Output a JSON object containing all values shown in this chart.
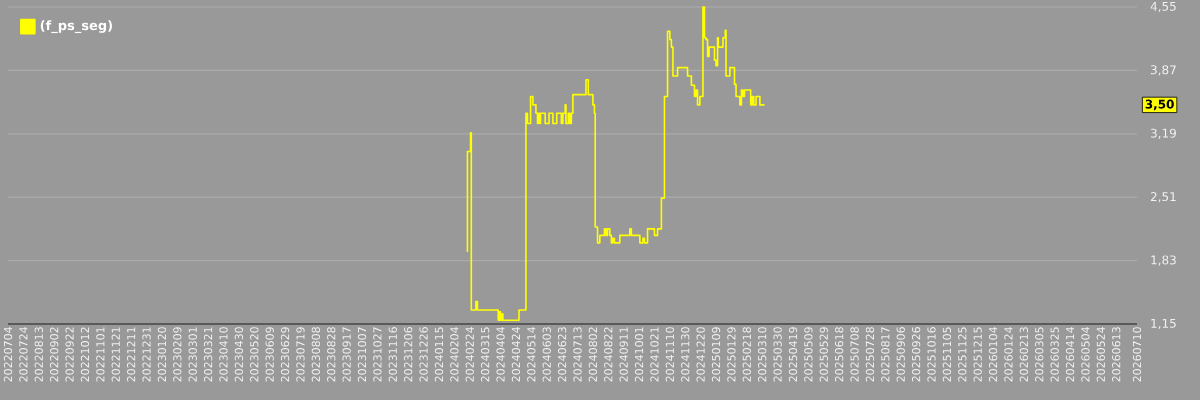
{
  "chart_data": {
    "type": "step",
    "series": [
      {
        "name": "(f_ps_seg)",
        "color": "#ffff00",
        "x": [
          "2024-02-20",
          "2024-02-21",
          "2024-02-24",
          "2024-02-25",
          "2024-02-26",
          "2024-03-02",
          "2024-03-03",
          "2024-03-05",
          "2024-03-31",
          "2024-04-01",
          "2024-04-03",
          "2024-04-04",
          "2024-04-06",
          "2024-04-07",
          "2024-04-27",
          "2024-04-28",
          "2024-05-05",
          "2024-05-07",
          "2024-05-09",
          "2024-05-13",
          "2024-05-16",
          "2024-05-18",
          "2024-05-20",
          "2024-05-22",
          "2024-05-23",
          "2024-05-25",
          "2024-05-26",
          "2024-05-31",
          "2024-06-01",
          "2024-06-04",
          "2024-06-06",
          "2024-06-10",
          "2024-06-11",
          "2024-06-15",
          "2024-06-16",
          "2024-06-20",
          "2024-06-22",
          "2024-06-24",
          "2024-06-27",
          "2024-06-28",
          "2024-07-01",
          "2024-07-03",
          "2024-07-05",
          "2024-07-07",
          "2024-07-22",
          "2024-07-24",
          "2024-07-27",
          "2024-07-31",
          "2024-08-02",
          "2024-08-04",
          "2024-08-05",
          "2024-08-08",
          "2024-08-11",
          "2024-08-17",
          "2024-08-19",
          "2024-08-21",
          "2024-08-24",
          "2024-08-26",
          "2024-08-28",
          "2024-08-30",
          "2024-09-03",
          "2024-09-06",
          "2024-09-16",
          "2024-09-19",
          "2024-09-21",
          "2024-09-30",
          "2024-10-02",
          "2024-10-06",
          "2024-10-08",
          "2024-10-12",
          "2024-10-21",
          "2024-10-25",
          "2024-10-30",
          "2024-11-03",
          "2024-11-07",
          "2024-11-10",
          "2024-11-12",
          "2024-11-14",
          "2024-11-20",
          "2024-12-01",
          "2024-12-03",
          "2024-12-08",
          "2024-12-12",
          "2024-12-14",
          "2024-12-16",
          "2024-12-19",
          "2024-12-23",
          "2024-12-25",
          "2024-12-27",
          "2024-12-29",
          "2024-12-31",
          "2025-01-07",
          "2025-01-09",
          "2025-01-11",
          "2025-01-12",
          "2025-01-18",
          "2025-01-21",
          "2025-01-22",
          "2025-01-27",
          "2025-01-31",
          "2025-02-02",
          "2025-02-04",
          "2025-02-09",
          "2025-02-11",
          "2025-02-13",
          "2025-02-15",
          "2025-02-21",
          "2025-02-23",
          "2025-02-25",
          "2025-02-27",
          "2025-03-02",
          "2025-03-07",
          "2025-03-13"
        ],
        "values": [
          1.93,
          3.0,
          3.0,
          3.2,
          1.3,
          1.3,
          1.39,
          1.3,
          1.3,
          1.19,
          1.28,
          1.19,
          1.26,
          1.19,
          1.19,
          1.3,
          1.3,
          3.41,
          3.3,
          3.59,
          3.5,
          3.5,
          3.41,
          3.3,
          3.41,
          3.3,
          3.41,
          3.41,
          3.3,
          3.3,
          3.41,
          3.41,
          3.3,
          3.3,
          3.41,
          3.41,
          3.3,
          3.41,
          3.5,
          3.3,
          3.41,
          3.3,
          3.41,
          3.61,
          3.61,
          3.77,
          3.61,
          3.61,
          3.5,
          3.41,
          2.19,
          2.02,
          2.1,
          2.17,
          2.1,
          2.17,
          2.1,
          2.02,
          2.07,
          2.02,
          2.02,
          2.1,
          2.1,
          2.17,
          2.1,
          2.1,
          2.02,
          2.07,
          2.02,
          2.17,
          2.1,
          2.17,
          2.5,
          3.59,
          4.29,
          4.2,
          4.12,
          3.81,
          3.9,
          3.9,
          3.81,
          3.71,
          3.59,
          3.66,
          3.5,
          3.59,
          4.55,
          4.22,
          4.2,
          4.02,
          4.12,
          3.98,
          3.92,
          4.22,
          4.12,
          4.22,
          4.3,
          3.81,
          3.9,
          3.9,
          3.72,
          3.59,
          3.5,
          3.66,
          3.59,
          3.66,
          3.66,
          3.5,
          3.59,
          3.5,
          3.59,
          3.5,
          3.5
        ]
      }
    ],
    "annotations": [
      "3,50"
    ],
    "xlim": [
      "2022-07-04",
      "2026-07-10"
    ],
    "xticks": [
      {
        "value": "2022-07-04",
        "label": "20220704"
      },
      {
        "value": "2022-07-24",
        "label": "20220724"
      },
      {
        "value": "2022-08-13",
        "label": "20220813"
      },
      {
        "value": "2022-09-02",
        "label": "20220902"
      },
      {
        "value": "2022-09-22",
        "label": "20220922"
      },
      {
        "value": "2022-10-12",
        "label": "20221012"
      },
      {
        "value": "2022-11-01",
        "label": "20221101"
      },
      {
        "value": "2022-11-21",
        "label": "20221121"
      },
      {
        "value": "2022-12-11",
        "label": "20221211"
      },
      {
        "value": "2022-12-31",
        "label": "20221231"
      },
      {
        "value": "2023-01-20",
        "label": "20230120"
      },
      {
        "value": "2023-02-09",
        "label": "20230209"
      },
      {
        "value": "2023-03-01",
        "label": "20230301"
      },
      {
        "value": "2023-03-21",
        "label": "20230321"
      },
      {
        "value": "2023-04-10",
        "label": "20230410"
      },
      {
        "value": "2023-04-30",
        "label": "20230430"
      },
      {
        "value": "2023-05-20",
        "label": "20230520"
      },
      {
        "value": "2023-06-09",
        "label": "20230609"
      },
      {
        "value": "2023-06-29",
        "label": "20230629"
      },
      {
        "value": "2023-07-19",
        "label": "20230719"
      },
      {
        "value": "2023-08-08",
        "label": "20230808"
      },
      {
        "value": "2023-08-28",
        "label": "20230828"
      },
      {
        "value": "2023-09-17",
        "label": "20230917"
      },
      {
        "value": "2023-10-07",
        "label": "20231007"
      },
      {
        "value": "2023-10-27",
        "label": "20231027"
      },
      {
        "value": "2023-11-16",
        "label": "20231116"
      },
      {
        "value": "2023-12-06",
        "label": "20231206"
      },
      {
        "value": "2023-12-26",
        "label": "20231226"
      },
      {
        "value": "2024-01-15",
        "label": "20240115"
      },
      {
        "value": "2024-02-04",
        "label": "20240204"
      },
      {
        "value": "2024-02-24",
        "label": "20240224"
      },
      {
        "value": "2024-03-15",
        "label": "20240315"
      },
      {
        "value": "2024-04-04",
        "label": "20240404"
      },
      {
        "value": "2024-04-24",
        "label": "20240424"
      },
      {
        "value": "2024-05-14",
        "label": "20240514"
      },
      {
        "value": "2024-06-03",
        "label": "20240603"
      },
      {
        "value": "2024-06-23",
        "label": "20240623"
      },
      {
        "value": "2024-07-13",
        "label": "20240713"
      },
      {
        "value": "2024-08-02",
        "label": "20240802"
      },
      {
        "value": "2024-08-22",
        "label": "20240822"
      },
      {
        "value": "2024-09-11",
        "label": "20240911"
      },
      {
        "value": "2024-10-01",
        "label": "20241001"
      },
      {
        "value": "2024-10-21",
        "label": "20241021"
      },
      {
        "value": "2024-11-10",
        "label": "20241110"
      },
      {
        "value": "2024-11-30",
        "label": "20241130"
      },
      {
        "value": "2024-12-20",
        "label": "20241220"
      },
      {
        "value": "2025-01-09",
        "label": "20250109"
      },
      {
        "value": "2025-01-29",
        "label": "20250129"
      },
      {
        "value": "2025-02-18",
        "label": "20250218"
      },
      {
        "value": "2025-03-10",
        "label": "20250310"
      },
      {
        "value": "2025-03-30",
        "label": "20250330"
      },
      {
        "value": "2025-04-19",
        "label": "20250419"
      },
      {
        "value": "2025-05-09",
        "label": "20250509"
      },
      {
        "value": "2025-05-29",
        "label": "20250529"
      },
      {
        "value": "2025-06-18",
        "label": "20250618"
      },
      {
        "value": "2025-07-08",
        "label": "20250708"
      },
      {
        "value": "2025-07-28",
        "label": "20250728"
      },
      {
        "value": "2025-08-17",
        "label": "20250817"
      },
      {
        "value": "2025-09-06",
        "label": "20250906"
      },
      {
        "value": "2025-09-26",
        "label": "20250926"
      },
      {
        "value": "2025-10-16",
        "label": "20251016"
      },
      {
        "value": "2025-11-05",
        "label": "20251105"
      },
      {
        "value": "2025-11-25",
        "label": "20251125"
      },
      {
        "value": "2025-12-15",
        "label": "20251215"
      },
      {
        "value": "2026-01-04",
        "label": "20260104"
      },
      {
        "value": "2026-01-24",
        "label": "20260124"
      },
      {
        "value": "2026-02-13",
        "label": "20260213"
      },
      {
        "value": "2026-03-05",
        "label": "20260305"
      },
      {
        "value": "2026-03-25",
        "label": "20260325"
      },
      {
        "value": "2026-04-14",
        "label": "20260414"
      },
      {
        "value": "2026-05-04",
        "label": "20260504"
      },
      {
        "value": "2026-05-24",
        "label": "20260524"
      },
      {
        "value": "2026-06-13",
        "label": "20260613"
      },
      {
        "value": "2026-07-10",
        "label": "20260710"
      }
    ],
    "ylim": [
      1.15,
      4.55
    ],
    "yticks": [
      {
        "value": 1.15,
        "label": "1,15"
      },
      {
        "value": 1.83,
        "label": "1,83"
      },
      {
        "value": 2.51,
        "label": "2,51"
      },
      {
        "value": 3.19,
        "label": "3,19"
      },
      {
        "value": 3.87,
        "label": "3,87"
      },
      {
        "value": 4.55,
        "label": "4,55"
      }
    ],
    "grid": "y",
    "legend": "top left"
  }
}
